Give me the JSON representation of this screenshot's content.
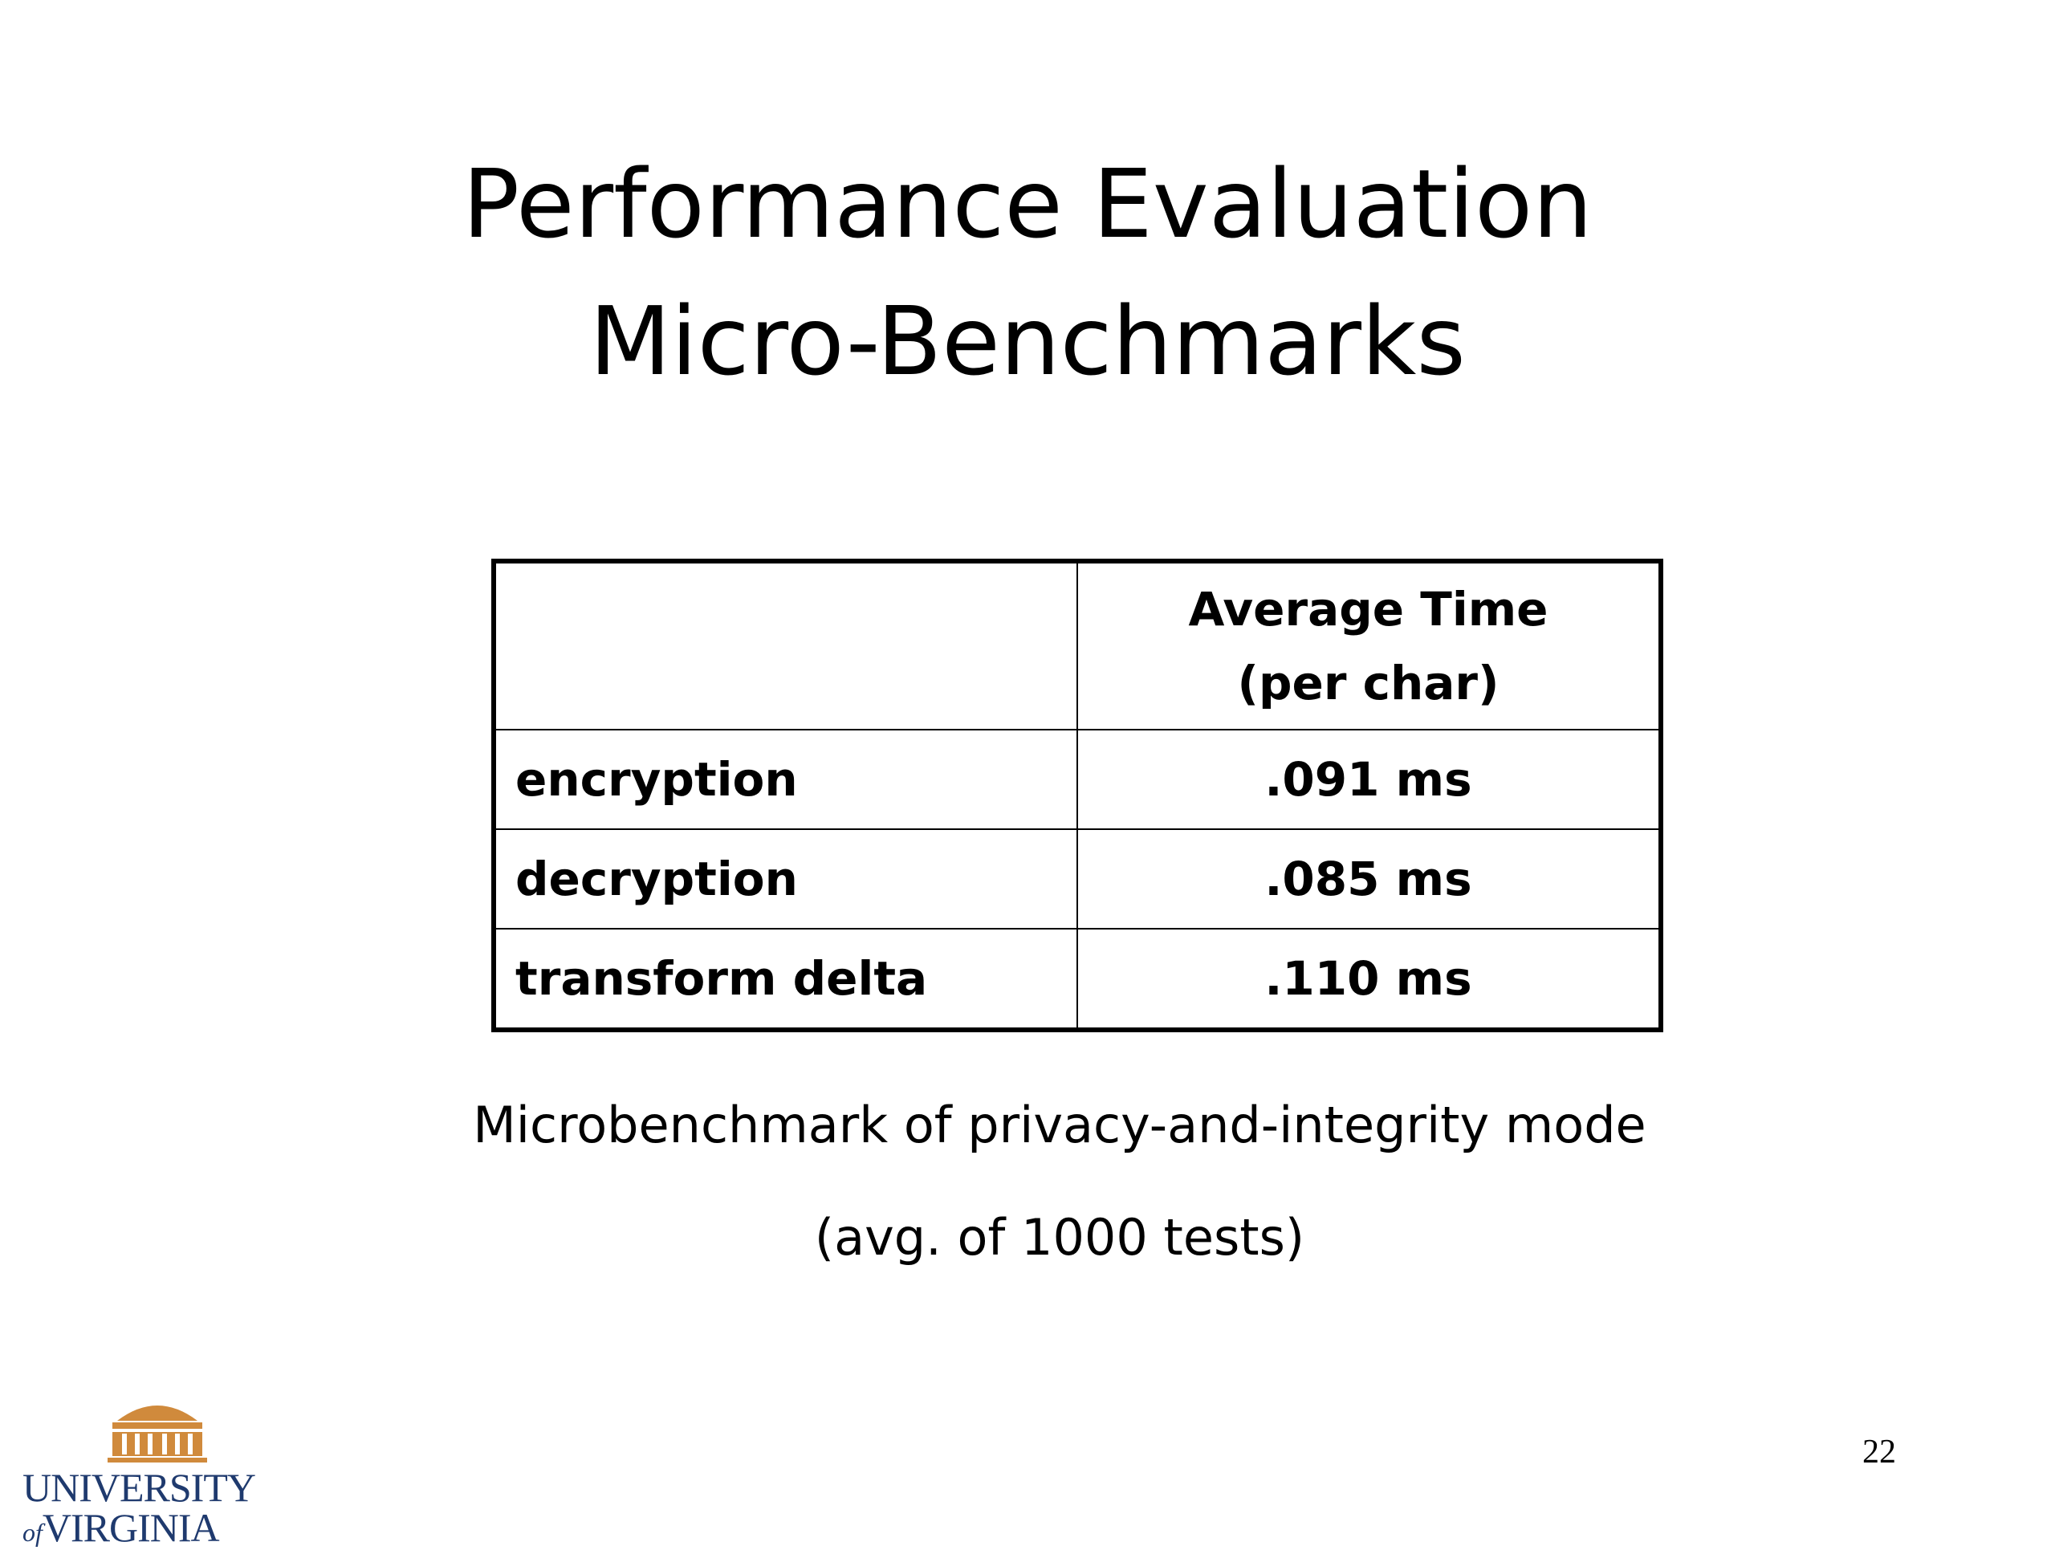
{
  "slide": {
    "title": [
      "Performance Evaluation",
      "Micro-Benchmarks"
    ],
    "table": {
      "header": [
        "Average Time",
        "(per char)"
      ],
      "rows": [
        [
          "encryption",
          ".091 ms"
        ],
        [
          "decryption",
          ".085 ms"
        ],
        [
          "transform delta",
          ".110 ms"
        ]
      ]
    },
    "caption": [
      "Microbenchmark of privacy-and-integrity mode",
      "(avg. of 1000 tests)"
    ],
    "page_number": "22",
    "logo": {
      "line1": "UNIVERSITY",
      "of": "of",
      "line2": "VIRGINIA"
    }
  }
}
